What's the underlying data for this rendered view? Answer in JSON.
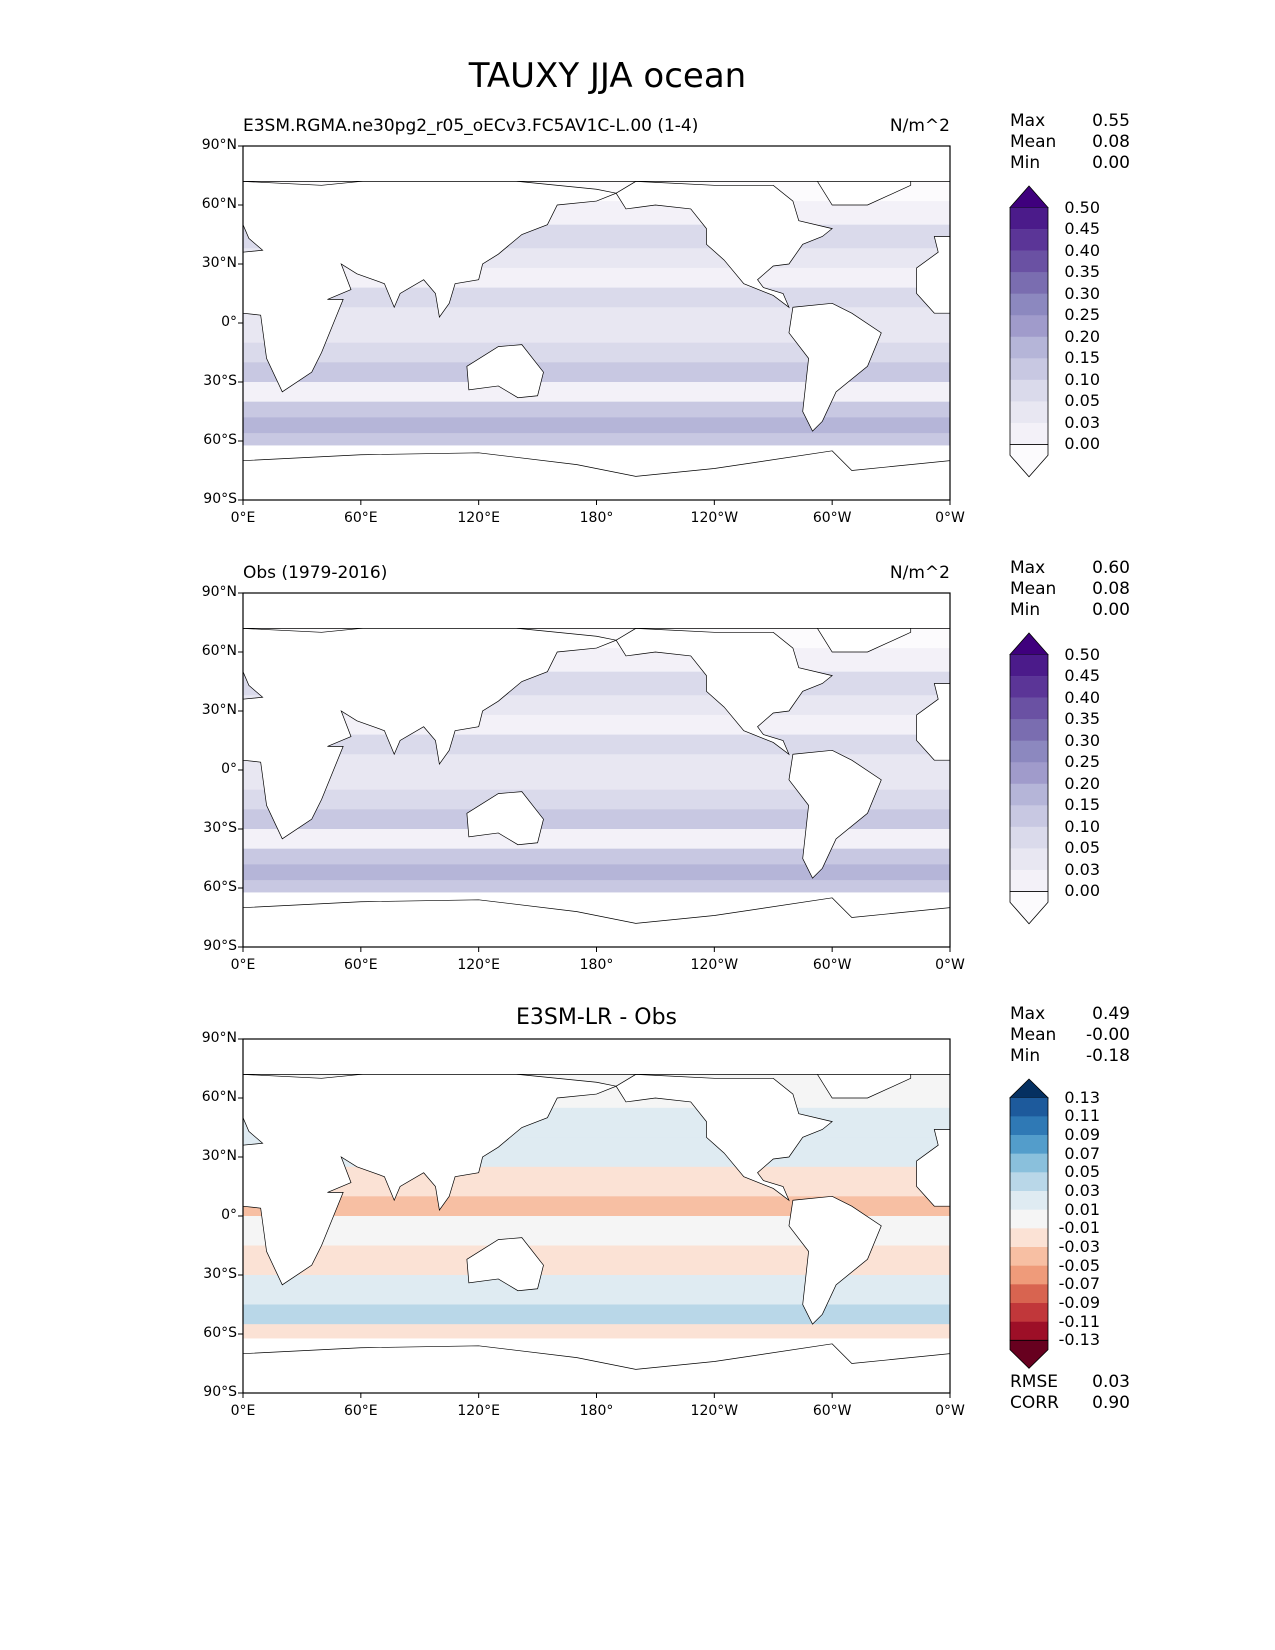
{
  "title": "TAUXY JJA ocean",
  "lat_ticks": [
    "90°N",
    "60°N",
    "30°N",
    "0°",
    "30°S",
    "60°S",
    "90°S"
  ],
  "lon_ticks": [
    "0°E",
    "60°E",
    "120°E",
    "180°",
    "120°W",
    "60°W",
    "0°W"
  ],
  "panels": [
    {
      "left_title": "E3SM.RGMA.ne30pg2_r05_oECv3.FC5AV1C-L.00 (1-4)",
      "center_title": "",
      "units": "N/m^2",
      "stats": {
        "labels": [
          "Max",
          "Mean",
          "Min"
        ],
        "values": [
          "0.55",
          "0.08",
          "0.00"
        ]
      },
      "colorbar": {
        "colormap": "Purples",
        "levels": [
          "0.00",
          "0.03",
          "0.05",
          "0.10",
          "0.15",
          "0.20",
          "0.25",
          "0.30",
          "0.35",
          "0.40",
          "0.45",
          "0.50"
        ],
        "colors": [
          "#fcfbfd",
          "#f3f1f8",
          "#e8e7f2",
          "#dadaeb",
          "#c8c8e2",
          "#b5b5d8",
          "#a09bcb",
          "#8c88bf",
          "#7a6db0",
          "#6a51a3",
          "#5b3597",
          "#4b1b8a",
          "#3f007d"
        ]
      }
    },
    {
      "left_title": "Obs (1979-2016)",
      "center_title": "",
      "units": "N/m^2",
      "stats": {
        "labels": [
          "Max",
          "Mean",
          "Min"
        ],
        "values": [
          "0.60",
          "0.08",
          "0.00"
        ]
      },
      "colorbar": {
        "colormap": "Purples",
        "levels": [
          "0.00",
          "0.03",
          "0.05",
          "0.10",
          "0.15",
          "0.20",
          "0.25",
          "0.30",
          "0.35",
          "0.40",
          "0.45",
          "0.50"
        ],
        "colors": [
          "#fcfbfd",
          "#f3f1f8",
          "#e8e7f2",
          "#dadaeb",
          "#c8c8e2",
          "#b5b5d8",
          "#a09bcb",
          "#8c88bf",
          "#7a6db0",
          "#6a51a3",
          "#5b3597",
          "#4b1b8a",
          "#3f007d"
        ]
      }
    },
    {
      "left_title": "",
      "center_title": "E3SM-LR - Obs",
      "units": "",
      "stats": {
        "labels": [
          "Max",
          "Mean",
          "Min"
        ],
        "values": [
          "0.49",
          "-0.00",
          "-0.18"
        ]
      },
      "colorbar": {
        "colormap": "RdBu",
        "levels": [
          "-0.13",
          "-0.11",
          "-0.09",
          "-0.07",
          "-0.05",
          "-0.03",
          "-0.01",
          "0.01",
          "0.03",
          "0.05",
          "0.07",
          "0.09",
          "0.11",
          "0.13"
        ],
        "colors": [
          "#67001f",
          "#9d0f27",
          "#c1373a",
          "#d86450",
          "#ef9b7a",
          "#f7bfa3",
          "#fbe2d5",
          "#f5f5f5",
          "#dfebf2",
          "#b9d7e8",
          "#8ac0dc",
          "#539dcb",
          "#2f79b5",
          "#1d5a9c",
          "#053061"
        ]
      },
      "extra": {
        "labels": [
          "RMSE",
          "CORR"
        ],
        "values": [
          "0.03",
          "0.90"
        ]
      }
    }
  ]
}
